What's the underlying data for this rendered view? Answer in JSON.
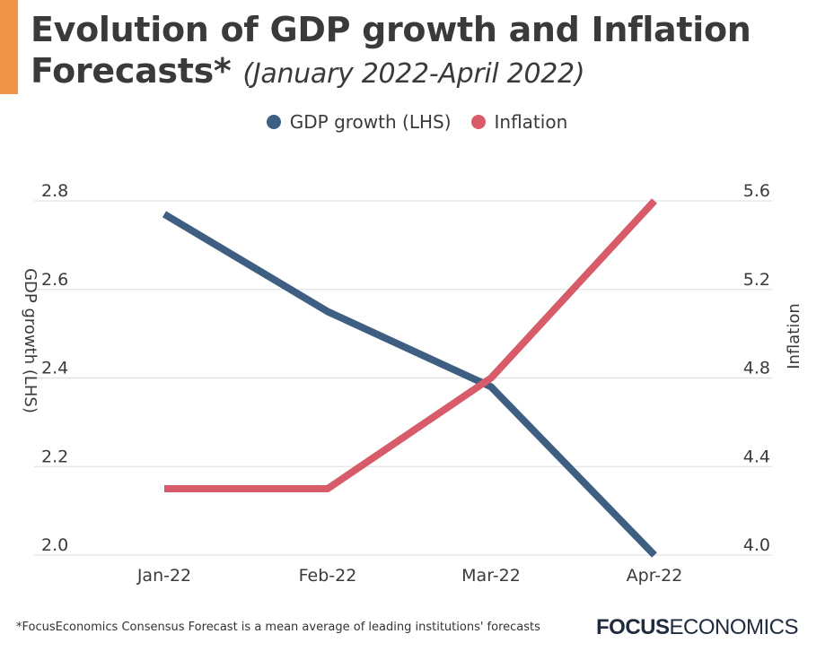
{
  "header": {
    "title": "Evolution of GDP growth and Inflation Forecasts*",
    "subtitle": "(January 2022-April 2022)"
  },
  "colors": {
    "accent": "#f0944a",
    "gdp": "#3e5f82",
    "inflation": "#d85b6a",
    "grid": "#dddddd"
  },
  "chart_data": {
    "type": "line",
    "title": "Evolution of GDP growth and Inflation Forecasts*",
    "subtitle": "(January 2022-April 2022)",
    "categories": [
      "Jan-22",
      "Feb-22",
      "Mar-22",
      "Apr-22"
    ],
    "series": [
      {
        "name": "GDP growth (LHS)",
        "axis": "left",
        "values": [
          2.77,
          2.55,
          2.38,
          2.0
        ]
      },
      {
        "name": "Inflation",
        "axis": "right",
        "values": [
          4.3,
          4.3,
          4.8,
          5.6
        ]
      }
    ],
    "y_left": {
      "label": "GDP growth (LHS)",
      "ylim": [
        2.0,
        2.8
      ],
      "ticks": [
        "2.8",
        "2.6",
        "2.4",
        "2.2",
        "2.0"
      ]
    },
    "y_right": {
      "label": "Inflation",
      "ylim": [
        4.0,
        5.6
      ],
      "ticks": [
        "5.6",
        "5.2",
        "4.8",
        "4.4",
        "4.0"
      ]
    },
    "grid": true,
    "legend_position": "top-center"
  },
  "footnote": "*FocusEconomics Consensus Forecast is a mean average of leading institutions' forecasts",
  "logo": {
    "bold": "FOCUS",
    "light": "ECONOMICS"
  }
}
